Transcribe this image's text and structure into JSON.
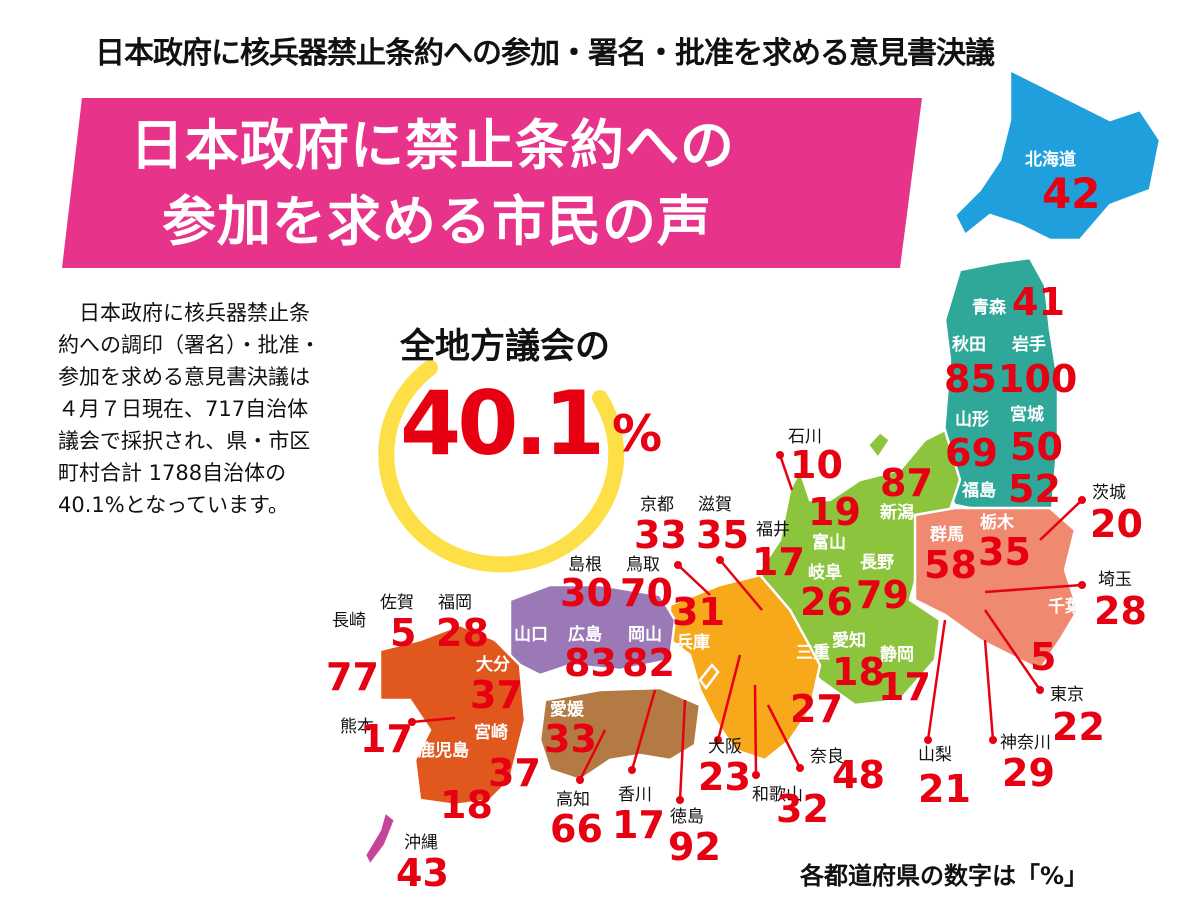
{
  "headline": "日本政府に核兵器禁止条約への参加・署名・批准を求める意見書決議",
  "title_line1": "日本政府に禁止条約への",
  "title_line2": "参加を求める市民の声",
  "body_lines": [
    "　日本政府に核兵器禁止条",
    "約への調印（署名）・批准・",
    "参加を求める意見書決議は",
    "４月７日現在、717自治体",
    "議会で採択され、県・市区",
    "町村合計 1788自治体の",
    "40.1%となっています。"
  ],
  "stat": {
    "caption": "全地方議会の",
    "value": "40.1",
    "unit": "%"
  },
  "footnote": "各都道府県の数字は「%」",
  "colors": {
    "banner": "#e8338b",
    "ring": "#fde047",
    "value": "#e60012",
    "hokkaido": "#1fa0dc",
    "tohoku": "#2fa89a",
    "kanto": "#ef8a70",
    "chubu": "#8cc43d",
    "kinki": "#f7a81b",
    "chugoku": "#9b79b6",
    "shikoku": "#b47a43",
    "kyushu": "#e0581e",
    "okinawa": "#c4449b"
  },
  "prefectures": {
    "hokkaido": {
      "name": "北海道",
      "value": "42"
    },
    "aomori": {
      "name": "青森",
      "value": "41"
    },
    "akita": {
      "name": "秋田",
      "value": "85"
    },
    "iwate": {
      "name": "岩手",
      "value": "100"
    },
    "yamagata": {
      "name": "山形",
      "value": "69"
    },
    "miyagi": {
      "name": "宮城",
      "value": "50"
    },
    "fukushima": {
      "name": "福島",
      "value": "52"
    },
    "ibaraki": {
      "name": "茨城",
      "value": "20"
    },
    "tochigi": {
      "name": "栃木",
      "value": "35"
    },
    "gunma": {
      "name": "群馬",
      "value": "58"
    },
    "saitama": {
      "name": "埼玉",
      "value": "28"
    },
    "chiba": {
      "name": "千葉",
      "value": "5"
    },
    "tokyo": {
      "name": "東京",
      "value": "22"
    },
    "kanagawa": {
      "name": "神奈川",
      "value": "29"
    },
    "yamanashi": {
      "name": "山梨",
      "value": "21"
    },
    "niigata": {
      "name": "新潟",
      "value": "87"
    },
    "toyama": {
      "name": "富山",
      "value": "19"
    },
    "ishikawa": {
      "name": "石川",
      "value": "10"
    },
    "fukui": {
      "name": "福井",
      "value": "17"
    },
    "nagano": {
      "name": "長野",
      "value": "79"
    },
    "gifu": {
      "name": "岐阜",
      "value": "26"
    },
    "shizuoka": {
      "name": "静岡",
      "value": "17"
    },
    "aichi": {
      "name": "愛知",
      "value": "18"
    },
    "mie": {
      "name": "三重",
      "value": "27"
    },
    "shiga": {
      "name": "滋賀",
      "value": "35"
    },
    "kyoto": {
      "name": "京都",
      "value": "33"
    },
    "osaka": {
      "name": "大阪",
      "value": "23"
    },
    "hyogo": {
      "name": "兵庫",
      "value": "31"
    },
    "nara": {
      "name": "奈良",
      "value": "48"
    },
    "wakayama": {
      "name": "和歌山",
      "value": "32"
    },
    "tottori": {
      "name": "鳥取",
      "value": "70"
    },
    "shimane": {
      "name": "島根",
      "value": "30"
    },
    "okayama": {
      "name": "岡山",
      "value": "82"
    },
    "hiroshima": {
      "name": "広島",
      "value": "83"
    },
    "yamaguchi": {
      "name": "山口",
      "value": ""
    },
    "tokushima": {
      "name": "徳島",
      "value": "92"
    },
    "kagawa": {
      "name": "香川",
      "value": "17"
    },
    "ehime": {
      "name": "愛媛",
      "value": "33"
    },
    "kochi": {
      "name": "高知",
      "value": "66"
    },
    "fukuoka": {
      "name": "福岡",
      "value": "28"
    },
    "saga": {
      "name": "佐賀",
      "value": "5"
    },
    "nagasaki": {
      "name": "長崎",
      "value": "77"
    },
    "kumamoto": {
      "name": "熊本",
      "value": "17"
    },
    "oita": {
      "name": "大分",
      "value": "37"
    },
    "miyazaki": {
      "name": "宮崎",
      "value": "37"
    },
    "kagoshima": {
      "name": "鹿児島",
      "value": "18"
    },
    "okinawa": {
      "name": "沖縄",
      "value": "43"
    }
  }
}
